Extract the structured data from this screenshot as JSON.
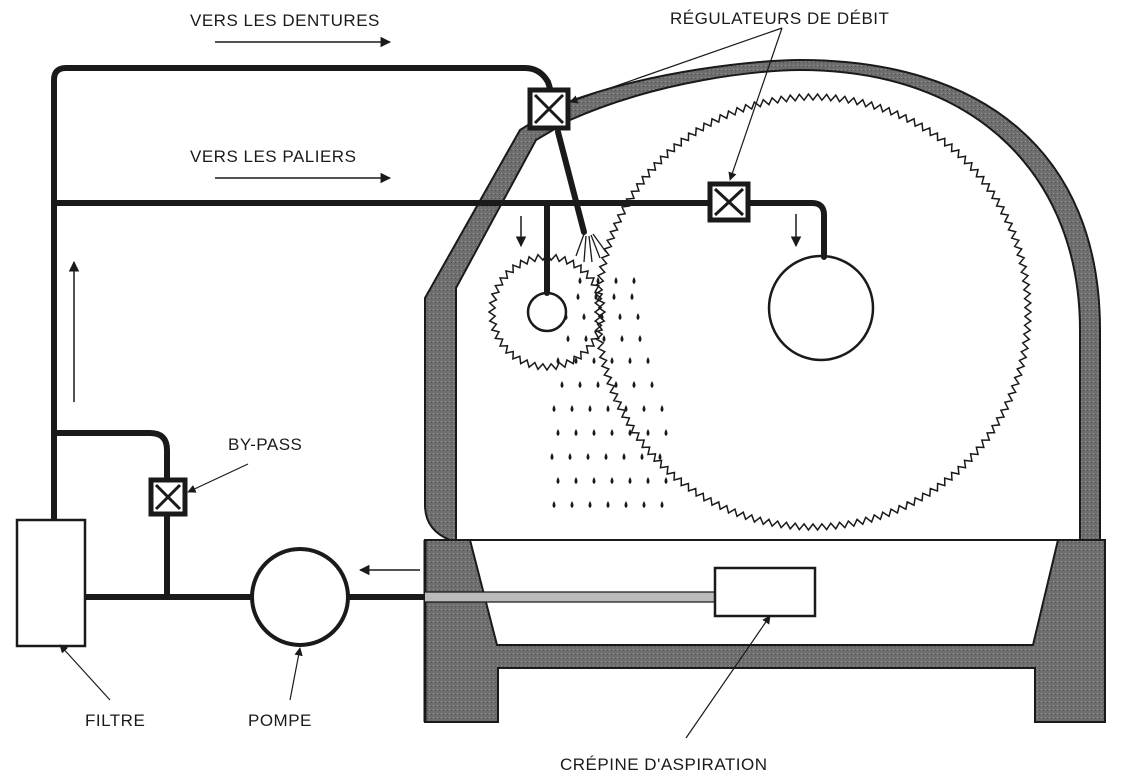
{
  "labels": {
    "toward_gears": "VERS LES DENTURES",
    "toward_bearings": "VERS LES PALIERS",
    "flow_regulators": "RÉGULATEURS DE DÉBIT",
    "bypass": "BY-PASS",
    "filter": "FILTRE",
    "pump": "POMPE",
    "suction_strainer": "CRÉPINE D'ASPIRATION"
  },
  "colors": {
    "ink": "#1a1a1a",
    "casing_shade": "#6e6e6e",
    "paper": "#ffffff"
  },
  "gears": {
    "pinion_teeth": 40,
    "wheel_teeth": 150
  }
}
